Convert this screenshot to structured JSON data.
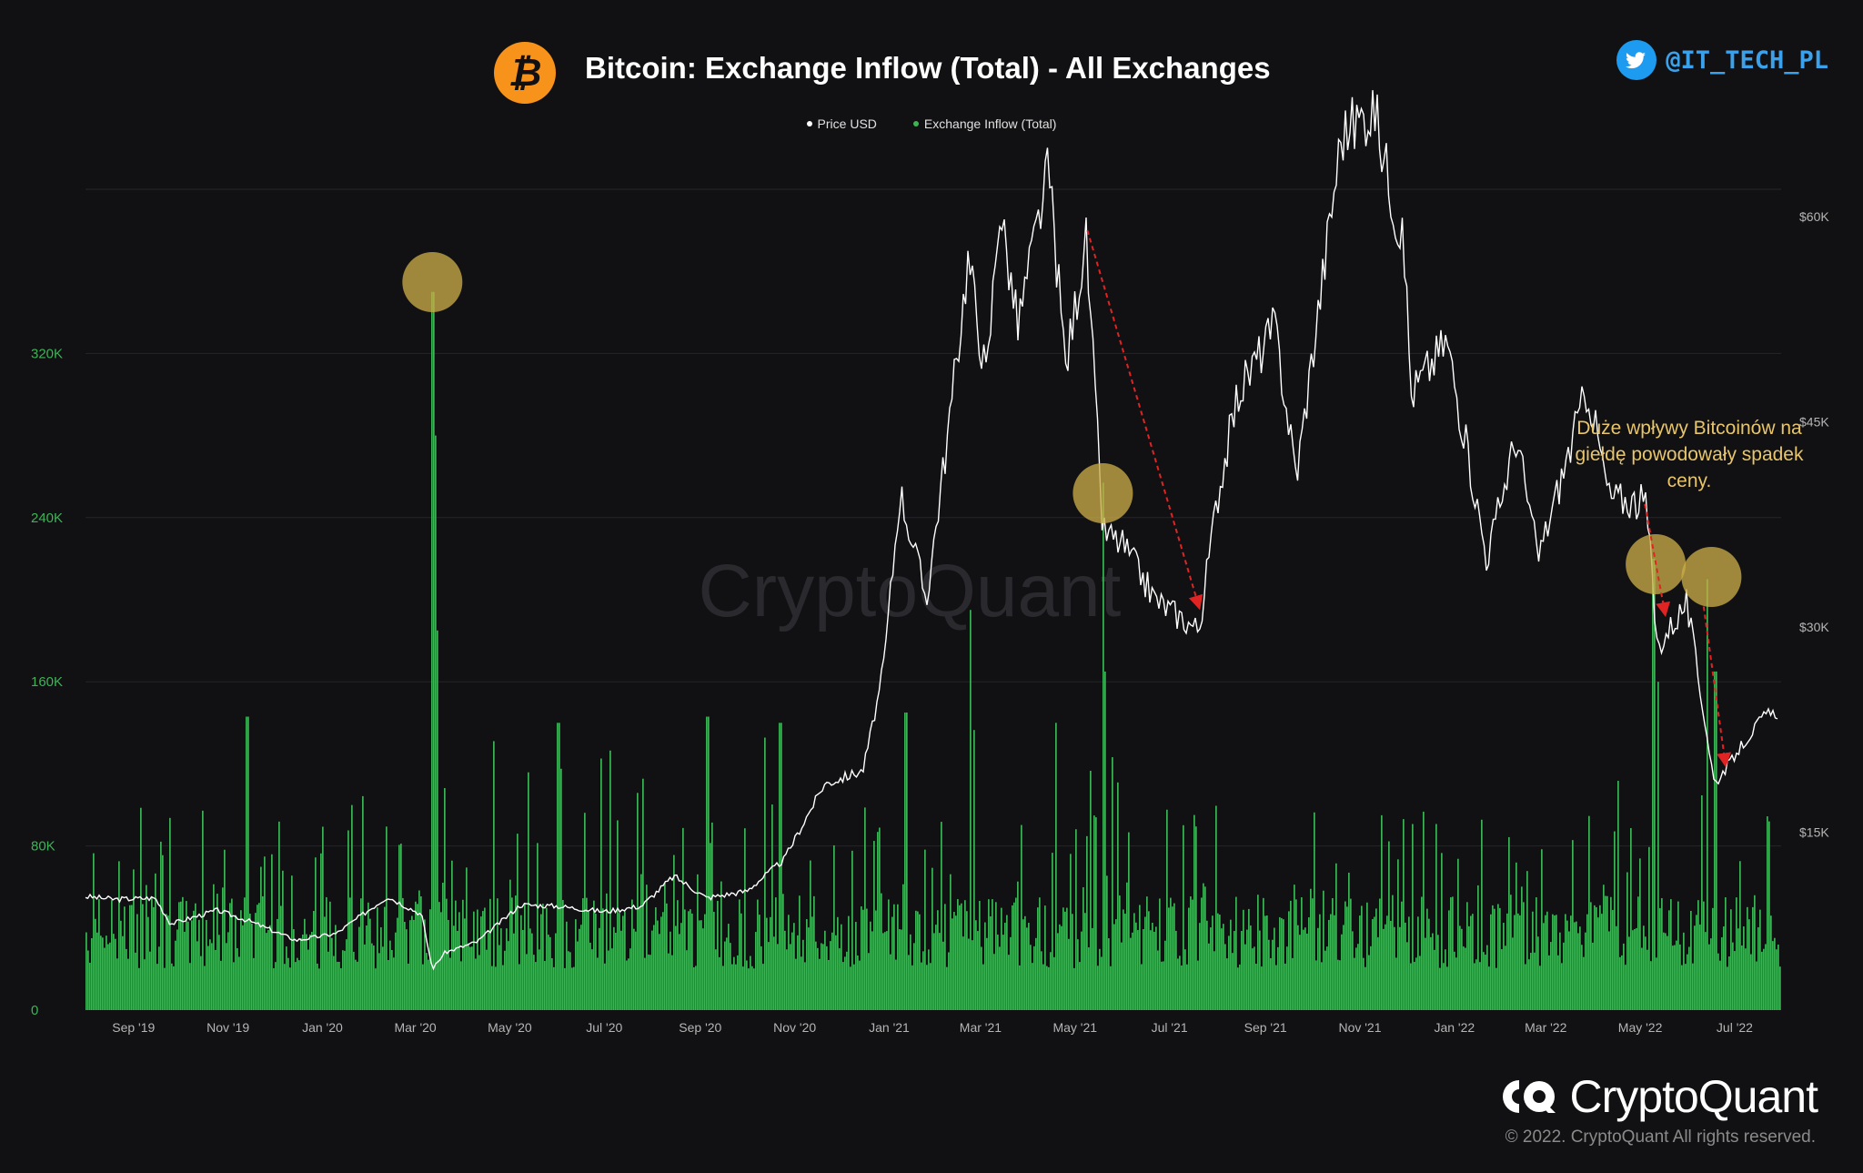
{
  "header": {
    "title": "Bitcoin: Exchange Inflow (Total) - All Exchanges",
    "twitter_handle": "@IT_TECH_PL"
  },
  "legend": [
    {
      "label": "Price USD",
      "color": "#ffffff"
    },
    {
      "label": "Exchange Inflow (Total)",
      "color": "#3cb456"
    }
  ],
  "watermark": "CryptoQuant",
  "annotation": {
    "lines": [
      "Duże wpływy Bitcoinów na",
      "giełdę powodowały spadek",
      "ceny."
    ]
  },
  "brand": {
    "name": "CryptoQuant",
    "copyright": "© 2022. CryptoQuant All rights reserved."
  },
  "colors": {
    "background": "#111113",
    "inflow": "#3cb456",
    "price": "#ffffff",
    "highlight": "#c8aa46",
    "arrow": "#e02424",
    "axis_left": "#3cb456",
    "annotation": "#e8c56a"
  },
  "chart_data": {
    "type": "bar+line",
    "x_ticks": [
      "Sep '19",
      "Nov '19",
      "Jan '20",
      "Mar '20",
      "May '20",
      "Jul '20",
      "Sep '20",
      "Nov '20",
      "Jan '21",
      "Mar '21",
      "May '21",
      "Jul '21",
      "Sep '21",
      "Nov '21",
      "Jan '22",
      "Mar '22",
      "May '22",
      "Jul '22"
    ],
    "y_left_ticks": [
      "0",
      "80K",
      "160K",
      "240K",
      "320K"
    ],
    "y_left_range": [
      0,
      400000
    ],
    "y_right_ticks": [
      "$15K",
      "$30K",
      "$45K",
      "$60K"
    ],
    "y_right_range": [
      2000,
      62000
    ],
    "grid": true,
    "x_range": [
      "2019-08-01",
      "2022-07-31"
    ],
    "series": [
      {
        "name": "Price USD",
        "axis": "right",
        "points": [
          [
            "2019-08-01",
            10300
          ],
          [
            "2019-08-20",
            10100
          ],
          [
            "2019-09-15",
            10200
          ],
          [
            "2019-09-25",
            8300
          ],
          [
            "2019-10-25",
            9300
          ],
          [
            "2019-11-15",
            8500
          ],
          [
            "2019-12-15",
            7100
          ],
          [
            "2020-01-10",
            7600
          ],
          [
            "2020-02-12",
            10300
          ],
          [
            "2020-03-05",
            9000
          ],
          [
            "2020-03-12",
            5000
          ],
          [
            "2020-03-20",
            6200
          ],
          [
            "2020-04-10",
            7000
          ],
          [
            "2020-05-08",
            9700
          ],
          [
            "2020-06-01",
            9600
          ],
          [
            "2020-07-01",
            9200
          ],
          [
            "2020-07-25",
            9600
          ],
          [
            "2020-08-15",
            11800
          ],
          [
            "2020-09-05",
            10200
          ],
          [
            "2020-10-01",
            10700
          ],
          [
            "2020-10-25",
            13000
          ],
          [
            "2020-11-20",
            18500
          ],
          [
            "2020-12-15",
            19500
          ],
          [
            "2020-12-28",
            26500
          ],
          [
            "2021-01-08",
            40000
          ],
          [
            "2021-01-25",
            32000
          ],
          [
            "2021-02-10",
            46000
          ],
          [
            "2021-02-21",
            57000
          ],
          [
            "2021-03-05",
            48000
          ],
          [
            "2021-03-13",
            61000
          ],
          [
            "2021-03-25",
            52000
          ],
          [
            "2021-04-14",
            63500
          ],
          [
            "2021-04-25",
            49000
          ],
          [
            "2021-05-08",
            58500
          ],
          [
            "2021-05-19",
            37000
          ],
          [
            "2021-06-01",
            36000
          ],
          [
            "2021-06-22",
            32000
          ],
          [
            "2021-07-20",
            29800
          ],
          [
            "2021-08-01",
            39500
          ],
          [
            "2021-08-14",
            47000
          ],
          [
            "2021-09-07",
            52000
          ],
          [
            "2021-09-21",
            41000
          ],
          [
            "2021-10-20",
            66000
          ],
          [
            "2021-11-10",
            68000
          ],
          [
            "2021-11-30",
            57000
          ],
          [
            "2021-12-04",
            47000
          ],
          [
            "2021-12-27",
            51000
          ],
          [
            "2022-01-22",
            35000
          ],
          [
            "2022-02-10",
            44000
          ],
          [
            "2022-02-24",
            35000
          ],
          [
            "2022-03-28",
            47500
          ],
          [
            "2022-04-11",
            39500
          ],
          [
            "2022-05-05",
            39000
          ],
          [
            "2022-05-12",
            28500
          ],
          [
            "2022-05-31",
            31800
          ],
          [
            "2022-06-18",
            18500
          ],
          [
            "2022-07-08",
            21700
          ],
          [
            "2022-07-20",
            23500
          ],
          [
            "2022-07-30",
            23800
          ]
        ]
      },
      {
        "name": "Exchange Inflow (Total)",
        "axis": "left",
        "baseline": 45000,
        "peaks": [
          [
            "2020-03-12",
            350000
          ],
          [
            "2020-03-13",
            280000
          ],
          [
            "2020-03-15",
            185000
          ],
          [
            "2021-05-19",
            257000
          ],
          [
            "2021-05-20",
            165000
          ],
          [
            "2022-05-09",
            220000
          ],
          [
            "2022-05-12",
            160000
          ],
          [
            "2022-06-13",
            210000
          ],
          [
            "2022-06-18",
            165000
          ],
          [
            "2019-11-13",
            143000
          ],
          [
            "2020-06-01",
            140000
          ],
          [
            "2020-09-05",
            143000
          ],
          [
            "2020-10-22",
            140000
          ],
          [
            "2021-01-11",
            145000
          ],
          [
            "2021-02-22",
            195000
          ],
          [
            "2021-04-18",
            140000
          ]
        ]
      }
    ],
    "highlights": [
      "2020-03-12",
      "2021-05-19",
      "2022-05-11",
      "2022-06-16"
    ],
    "trend_arrows": [
      [
        [
          "2021-05-09",
          59000
        ],
        [
          "2021-07-20",
          31500
        ]
      ],
      [
        [
          "2022-05-04",
          39000
        ],
        [
          "2022-05-17",
          31000
        ]
      ],
      [
        [
          "2022-06-11",
          31500
        ],
        [
          "2022-06-25",
          20000
        ]
      ]
    ]
  }
}
